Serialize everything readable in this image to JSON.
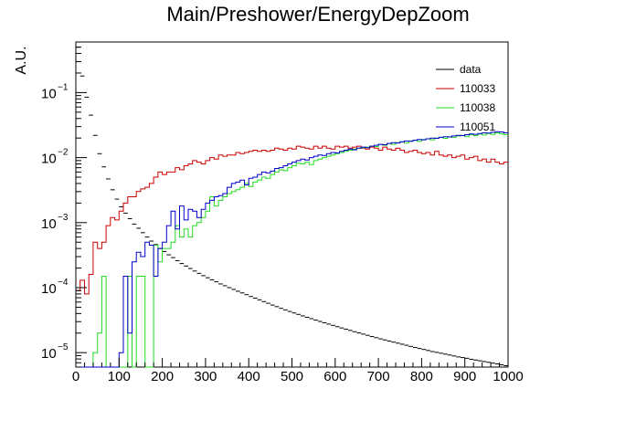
{
  "chart_data": {
    "type": "line",
    "title": "Main/Preshower/EnergyDepZoom",
    "xlabel": "",
    "ylabel": "A.U.",
    "xlim": [
      0,
      1000
    ],
    "ylim": [
      6e-06,
      0.6
    ],
    "yscale": "log",
    "grid": false,
    "legend_position": "top-right",
    "x_ticks": [
      0,
      100,
      200,
      300,
      400,
      500,
      600,
      700,
      800,
      900,
      1000
    ],
    "x_tick_labels": [
      "0",
      "100",
      "200",
      "300",
      "400",
      "500",
      "600",
      "700",
      "800",
      "900",
      "1000"
    ],
    "y_ticks": [
      {
        "value": 1e-05,
        "base": "10",
        "exp": "−5"
      },
      {
        "value": 0.0001,
        "base": "10",
        "exp": "−4"
      },
      {
        "value": 0.001,
        "base": "10",
        "exp": "−3"
      },
      {
        "value": 0.01,
        "base": "10",
        "exp": "−2"
      },
      {
        "value": 0.1,
        "base": "10",
        "exp": "−1"
      }
    ],
    "bin_width": 10,
    "series": [
      {
        "name": "data",
        "color": "#000000",
        "style": "points",
        "x": [
          5,
          15,
          25,
          35,
          45,
          55,
          65,
          75,
          85,
          95,
          105,
          115,
          125,
          135,
          145,
          155,
          165,
          175,
          185,
          195,
          205,
          215,
          225,
          235,
          245,
          255,
          265,
          275,
          285,
          295,
          305,
          315,
          325,
          335,
          345,
          355,
          365,
          375,
          385,
          395,
          405,
          415,
          425,
          435,
          445,
          455,
          465,
          475,
          485,
          495,
          505,
          515,
          525,
          535,
          545,
          555,
          565,
          575,
          585,
          595,
          605,
          615,
          625,
          635,
          645,
          655,
          665,
          675,
          685,
          695,
          705,
          715,
          725,
          735,
          745,
          755,
          765,
          775,
          785,
          795,
          805,
          815,
          825,
          835,
          845,
          855,
          865,
          875,
          885,
          895,
          905,
          915,
          925,
          935,
          945,
          955,
          965,
          975,
          985,
          995
        ],
        "y": [
          0.5,
          0.18,
          0.085,
          0.045,
          0.022,
          0.0115,
          0.0072,
          0.0047,
          0.0032,
          0.0023,
          0.00175,
          0.0014,
          0.00115,
          0.00095,
          0.00082,
          0.0007,
          0.0006,
          0.00052,
          0.00046,
          0.0004,
          0.00036,
          0.00032,
          0.00029,
          0.00026,
          0.000235,
          0.000215,
          0.000197,
          0.00018,
          0.000166,
          0.000153,
          0.000142,
          0.000132,
          0.000123,
          0.000114,
          0.000107,
          0.0001,
          9.4e-05,
          8.8e-05,
          8.3e-05,
          7.8e-05,
          7.3e-05,
          6.9e-05,
          6.5e-05,
          6.1e-05,
          5.75e-05,
          5.4e-05,
          5.1e-05,
          4.8e-05,
          4.55e-05,
          4.3e-05,
          4.08e-05,
          3.88e-05,
          3.68e-05,
          3.5e-05,
          3.33e-05,
          3.17e-05,
          3.02e-05,
          2.88e-05,
          2.75e-05,
          2.63e-05,
          2.51e-05,
          2.4e-05,
          2.3e-05,
          2.2e-05,
          2.1e-05,
          2.01e-05,
          1.93e-05,
          1.85e-05,
          1.77e-05,
          1.7e-05,
          1.63e-05,
          1.57e-05,
          1.51e-05,
          1.45e-05,
          1.4e-05,
          1.35e-05,
          1.3e-05,
          1.25e-05,
          1.2e-05,
          1.16e-05,
          1.12e-05,
          1.08e-05,
          1.04e-05,
          1.01e-05,
          9.8e-06,
          9.5e-06,
          9.2e-06,
          8.9e-06,
          8.6e-06,
          8.4e-06,
          8.2e-06,
          7.9e-06,
          7.7e-06,
          7.5e-06,
          7.3e-06,
          7.1e-06,
          6.9e-06,
          6.7e-06,
          6.5e-06,
          6.3e-06
        ]
      },
      {
        "name": "110033",
        "color": "#cc0000",
        "style": "step",
        "x": [
          5,
          15,
          25,
          35,
          45,
          55,
          65,
          75,
          85,
          95,
          105,
          115,
          125,
          135,
          145,
          155,
          165,
          175,
          185,
          195,
          205,
          215,
          225,
          235,
          245,
          255,
          265,
          275,
          285,
          295,
          305,
          315,
          325,
          335,
          345,
          355,
          365,
          375,
          385,
          395,
          405,
          415,
          425,
          435,
          445,
          455,
          465,
          475,
          485,
          495,
          505,
          515,
          525,
          535,
          545,
          555,
          565,
          575,
          585,
          595,
          605,
          615,
          625,
          635,
          645,
          655,
          665,
          675,
          685,
          695,
          705,
          715,
          725,
          735,
          745,
          755,
          765,
          775,
          785,
          795,
          805,
          815,
          825,
          835,
          845,
          855,
          865,
          875,
          885,
          895,
          905,
          915,
          925,
          935,
          945,
          955,
          965,
          975,
          985,
          995
        ],
        "y": [
          9e-05,
          0.00013,
          8e-05,
          0.00016,
          0.0005,
          0.0004,
          0.0005,
          0.0009,
          0.0012,
          0.0011,
          0.0015,
          0.002,
          0.0025,
          0.0025,
          0.003,
          0.0033,
          0.0035,
          0.004,
          0.005,
          0.006,
          0.0055,
          0.006,
          0.006,
          0.007,
          0.0065,
          0.0075,
          0.008,
          0.009,
          0.0085,
          0.008,
          0.009,
          0.01,
          0.0095,
          0.011,
          0.0105,
          0.011,
          0.011,
          0.012,
          0.0115,
          0.012,
          0.0125,
          0.013,
          0.0125,
          0.013,
          0.0125,
          0.013,
          0.014,
          0.0135,
          0.013,
          0.014,
          0.0135,
          0.015,
          0.0145,
          0.014,
          0.0135,
          0.015,
          0.014,
          0.015,
          0.014,
          0.0135,
          0.015,
          0.0145,
          0.015,
          0.014,
          0.0145,
          0.015,
          0.014,
          0.0135,
          0.0145,
          0.014,
          0.013,
          0.0145,
          0.0135,
          0.013,
          0.014,
          0.013,
          0.012,
          0.0125,
          0.013,
          0.012,
          0.0115,
          0.012,
          0.011,
          0.0125,
          0.011,
          0.0105,
          0.011,
          0.01,
          0.0105,
          0.011,
          0.0095,
          0.01,
          0.0105,
          0.009,
          0.0095,
          0.0085,
          0.0095,
          0.0085,
          0.008,
          0.0085
        ]
      },
      {
        "name": "110038",
        "color": "#22dd22",
        "style": "step",
        "x": [
          5,
          15,
          25,
          35,
          45,
          55,
          65,
          75,
          85,
          95,
          105,
          115,
          125,
          135,
          145,
          155,
          165,
          175,
          185,
          195,
          205,
          215,
          225,
          235,
          245,
          255,
          265,
          275,
          285,
          295,
          305,
          315,
          325,
          335,
          345,
          355,
          365,
          375,
          385,
          395,
          405,
          415,
          425,
          435,
          445,
          455,
          465,
          475,
          485,
          495,
          505,
          515,
          525,
          535,
          545,
          555,
          565,
          575,
          585,
          595,
          605,
          615,
          625,
          635,
          645,
          655,
          665,
          675,
          685,
          695,
          705,
          715,
          725,
          735,
          745,
          755,
          765,
          775,
          785,
          795,
          805,
          815,
          825,
          835,
          845,
          855,
          865,
          875,
          885,
          895,
          905,
          915,
          925,
          935,
          945,
          955,
          965,
          975,
          985,
          995
        ],
        "y": [
          0,
          0,
          0,
          0,
          1e-05,
          2e-05,
          0.00015,
          0,
          0,
          0,
          0,
          0,
          0.00015,
          0,
          0.00015,
          0.00015,
          0,
          0,
          0.00045,
          0.00025,
          0.0004,
          0.0004,
          0.0005,
          0.0009,
          0.0006,
          0.0008,
          0.0006,
          0.0009,
          0.001,
          0.0012,
          0.0015,
          0.0025,
          0.0018,
          0.0022,
          0.0025,
          0.0028,
          0.003,
          0.0032,
          0.0035,
          0.004,
          0.0036,
          0.0042,
          0.0045,
          0.005,
          0.0048,
          0.0055,
          0.006,
          0.0065,
          0.0063,
          0.007,
          0.0075,
          0.0082,
          0.008,
          0.0085,
          0.0078,
          0.009,
          0.0095,
          0.01,
          0.0105,
          0.011,
          0.0115,
          0.012,
          0.0125,
          0.013,
          0.0135,
          0.014,
          0.0142,
          0.0145,
          0.015,
          0.0148,
          0.016,
          0.0155,
          0.0165,
          0.016,
          0.017,
          0.0175,
          0.0168,
          0.018,
          0.0185,
          0.0178,
          0.019,
          0.0195,
          0.0188,
          0.02,
          0.0205,
          0.0198,
          0.021,
          0.0205,
          0.0215,
          0.022,
          0.021,
          0.0225,
          0.0218,
          0.023,
          0.0222,
          0.0235,
          0.0228,
          0.024,
          0.0232,
          0.0225
        ]
      },
      {
        "name": "110051",
        "color": "#0000cc",
        "style": "step",
        "x": [
          5,
          15,
          25,
          35,
          45,
          55,
          65,
          75,
          85,
          95,
          105,
          115,
          125,
          135,
          145,
          155,
          165,
          175,
          185,
          195,
          205,
          215,
          225,
          235,
          245,
          255,
          265,
          275,
          285,
          295,
          305,
          315,
          325,
          335,
          345,
          355,
          365,
          375,
          385,
          395,
          405,
          415,
          425,
          435,
          445,
          455,
          465,
          475,
          485,
          495,
          505,
          515,
          525,
          535,
          545,
          555,
          565,
          575,
          585,
          595,
          605,
          615,
          625,
          635,
          645,
          655,
          665,
          675,
          685,
          695,
          705,
          715,
          725,
          735,
          745,
          755,
          765,
          775,
          785,
          795,
          805,
          815,
          825,
          835,
          845,
          855,
          865,
          875,
          885,
          895,
          905,
          915,
          925,
          935,
          945,
          955,
          965,
          975,
          985,
          995
        ],
        "y": [
          0,
          0,
          0,
          0,
          0,
          0,
          0,
          0,
          0,
          0,
          1e-05,
          0.00015,
          2e-05,
          0.00025,
          0.00035,
          0.0003,
          0.0005,
          0.00045,
          0.00015,
          0.0004,
          0.0005,
          0.0009,
          0.0015,
          0.0008,
          0.0018,
          0.0011,
          0.0016,
          0.0015,
          0.0012,
          0.0016,
          0.002,
          0.0022,
          0.0025,
          0.0026,
          0.0028,
          0.0035,
          0.004,
          0.0042,
          0.0045,
          0.0038,
          0.0048,
          0.005,
          0.0055,
          0.006,
          0.0058,
          0.0062,
          0.0068,
          0.007,
          0.0075,
          0.008,
          0.0085,
          0.009,
          0.0095,
          0.0092,
          0.01,
          0.0105,
          0.011,
          0.0108,
          0.0115,
          0.012,
          0.0118,
          0.0125,
          0.013,
          0.0135,
          0.0132,
          0.014,
          0.0145,
          0.0142,
          0.015,
          0.0155,
          0.016,
          0.0158,
          0.0165,
          0.017,
          0.0168,
          0.0175,
          0.018,
          0.0178,
          0.0185,
          0.019,
          0.0188,
          0.0195,
          0.02,
          0.0198,
          0.0205,
          0.021,
          0.0208,
          0.0215,
          0.022,
          0.0218,
          0.0225,
          0.023,
          0.0228,
          0.0235,
          0.024,
          0.0238,
          0.0245,
          0.025,
          0.0248,
          0.024
        ]
      }
    ]
  }
}
